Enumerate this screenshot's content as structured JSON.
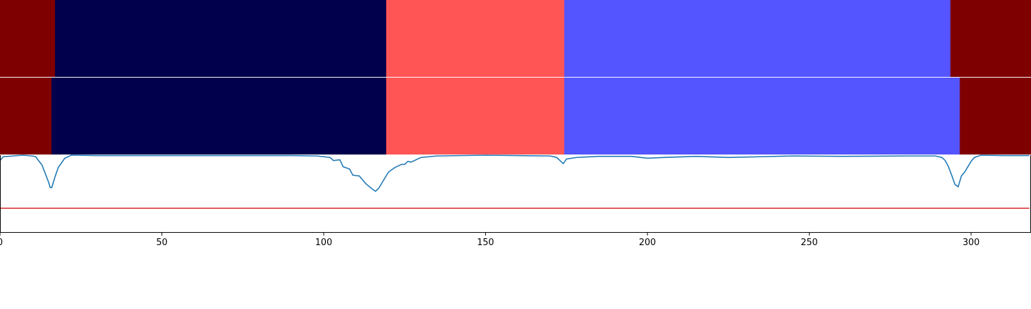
{
  "chart_data": {
    "type": "heatmap",
    "x_range": [
      0,
      318.5
    ],
    "x_ticks": [
      0,
      50,
      100,
      150,
      200,
      250,
      300
    ],
    "x_tick_labels": [
      "0",
      "50",
      "100",
      "150",
      "200",
      "250",
      "300"
    ],
    "segment_rows": [
      {
        "segments": [
          {
            "start": 0,
            "end": 17,
            "color": "#7f0000"
          },
          {
            "start": 17,
            "end": 119.3,
            "color": "#00004c"
          },
          {
            "start": 119.3,
            "end": 174.3,
            "color": "#ff5555"
          },
          {
            "start": 174.3,
            "end": 293.6,
            "color": "#5555ff"
          },
          {
            "start": 293.6,
            "end": 318.5,
            "color": "#7f0000"
          }
        ]
      },
      {
        "segments": [
          {
            "start": 0,
            "end": 15.9,
            "color": "#7f0000"
          },
          {
            "start": 15.9,
            "end": 119.3,
            "color": "#00004c"
          },
          {
            "start": 119.3,
            "end": 174.3,
            "color": "#ff5555"
          },
          {
            "start": 174.3,
            "end": 296.5,
            "color": "#5555ff"
          },
          {
            "start": 296.5,
            "end": 318.5,
            "color": "#7f0000"
          }
        ]
      }
    ],
    "line_panel": {
      "ylim": [
        0,
        1
      ],
      "threshold": 0.31,
      "threshold_color": "#d62728",
      "line_color": "#1f77b4",
      "points": [
        [
          0,
          0.93
        ],
        [
          1,
          0.98
        ],
        [
          4,
          0.99
        ],
        [
          7,
          1.0
        ],
        [
          10,
          0.99
        ],
        [
          11,
          0.98
        ],
        [
          13,
          0.87
        ],
        [
          15,
          0.65
        ],
        [
          15.5,
          0.58
        ],
        [
          16,
          0.58
        ],
        [
          17,
          0.72
        ],
        [
          18,
          0.84
        ],
        [
          20,
          0.96
        ],
        [
          22,
          1.0
        ],
        [
          30,
          0.995
        ],
        [
          60,
          0.995
        ],
        [
          90,
          0.995
        ],
        [
          98,
          0.99
        ],
        [
          102,
          0.97
        ],
        [
          103,
          0.93
        ],
        [
          105,
          0.94
        ],
        [
          106,
          0.85
        ],
        [
          108,
          0.82
        ],
        [
          109,
          0.74
        ],
        [
          111,
          0.73
        ],
        [
          113,
          0.63
        ],
        [
          115,
          0.56
        ],
        [
          116,
          0.53
        ],
        [
          117,
          0.57
        ],
        [
          120,
          0.78
        ],
        [
          122,
          0.84
        ],
        [
          124,
          0.88
        ],
        [
          125,
          0.88
        ],
        [
          126,
          0.92
        ],
        [
          127,
          0.91
        ],
        [
          130,
          0.97
        ],
        [
          135,
          0.99
        ],
        [
          150,
          1.0
        ],
        [
          170,
          0.99
        ],
        [
          172,
          0.97
        ],
        [
          174,
          0.89
        ],
        [
          175,
          0.95
        ],
        [
          178,
          0.97
        ],
        [
          185,
          0.985
        ],
        [
          195,
          0.985
        ],
        [
          200,
          0.96
        ],
        [
          205,
          0.97
        ],
        [
          215,
          0.985
        ],
        [
          225,
          0.97
        ],
        [
          235,
          0.98
        ],
        [
          245,
          0.99
        ],
        [
          260,
          0.985
        ],
        [
          280,
          0.99
        ],
        [
          289,
          0.99
        ],
        [
          291,
          0.97
        ],
        [
          292,
          0.93
        ],
        [
          293,
          0.85
        ],
        [
          294,
          0.74
        ],
        [
          295,
          0.62
        ],
        [
          296,
          0.59
        ],
        [
          297,
          0.73
        ],
        [
          298,
          0.78
        ],
        [
          299,
          0.85
        ],
        [
          300,
          0.92
        ],
        [
          301,
          0.97
        ],
        [
          303,
          1.0
        ],
        [
          310,
          0.995
        ],
        [
          318,
          0.995
        ]
      ]
    }
  }
}
